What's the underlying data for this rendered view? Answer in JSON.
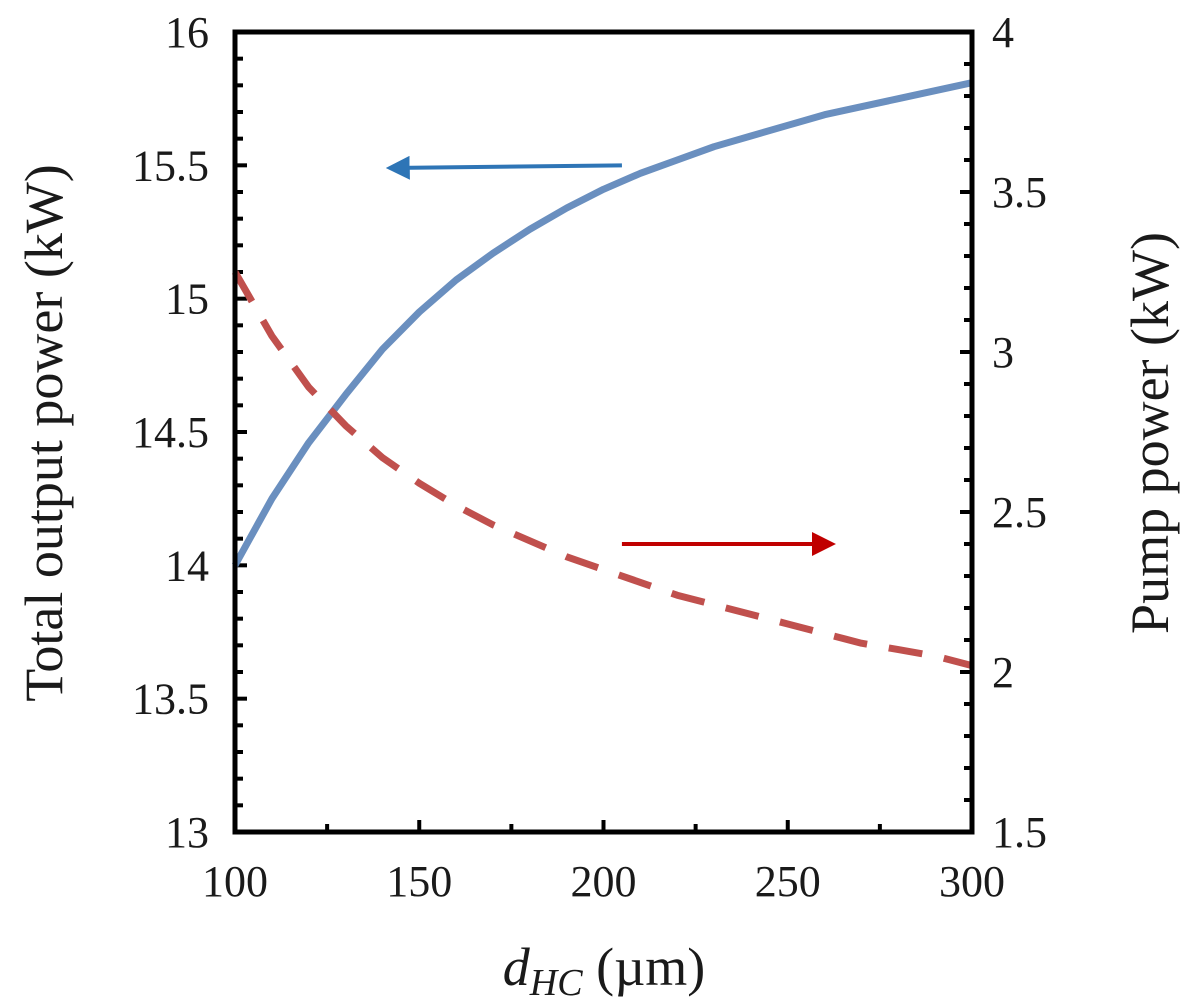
{
  "chart_data": {
    "type": "line",
    "xlabel": {
      "main": "d",
      "sub": "HC",
      "unit": " (µm)"
    },
    "ylabel_left": "Total output power (kW)",
    "ylabel_right": "Pump power (kW)",
    "xlim": [
      100,
      300
    ],
    "ylim_left": [
      13,
      16
    ],
    "ylim_right": [
      1.5,
      4
    ],
    "x_ticks": [
      "100",
      "150",
      "200",
      "250",
      "300"
    ],
    "y_left_ticks": [
      "13",
      "13.5",
      "14",
      "14.5",
      "15",
      "15.5",
      "16"
    ],
    "y_right_ticks": [
      "1.5",
      "2",
      "2.5",
      "3",
      "3.5",
      "4"
    ],
    "grid": false,
    "series": [
      {
        "axis": "left",
        "style": "solid",
        "color": "#6a8fbf",
        "x": [
          100,
          110,
          120,
          130,
          140,
          150,
          160,
          170,
          180,
          190,
          200,
          210,
          220,
          230,
          240,
          250,
          260,
          270,
          280,
          290,
          300
        ],
        "y": [
          14.0,
          14.25,
          14.46,
          14.64,
          14.81,
          14.95,
          15.07,
          15.17,
          15.26,
          15.34,
          15.41,
          15.47,
          15.52,
          15.57,
          15.61,
          15.65,
          15.69,
          15.72,
          15.75,
          15.78,
          15.81
        ]
      },
      {
        "axis": "right",
        "style": "dashed",
        "color": "#c0504d",
        "x": [
          100,
          110,
          120,
          130,
          140,
          150,
          160,
          170,
          180,
          190,
          200,
          210,
          220,
          230,
          240,
          250,
          260,
          270,
          280,
          290,
          300
        ],
        "y": [
          3.25,
          3.05,
          2.89,
          2.77,
          2.67,
          2.59,
          2.52,
          2.46,
          2.41,
          2.36,
          2.32,
          2.28,
          2.24,
          2.21,
          2.18,
          2.15,
          2.12,
          2.09,
          2.07,
          2.05,
          2.02
        ]
      }
    ],
    "annotations": [
      {
        "type": "arrow",
        "direction": "left",
        "target_axis": "left",
        "color": "#2e75b6",
        "x_from": 205,
        "x_to": 142,
        "y": 15.5,
        "y2": 15.49
      },
      {
        "type": "arrow",
        "direction": "right",
        "target_axis": "right",
        "color": "#c00000",
        "x_from": 205,
        "x_to": 262,
        "y": 2.4
      }
    ]
  }
}
